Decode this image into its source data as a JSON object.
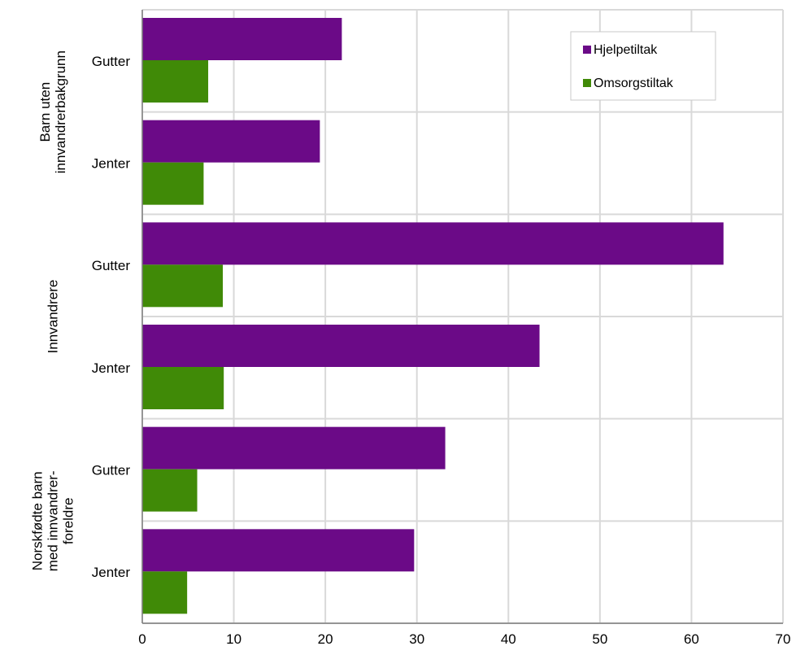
{
  "chart_data": {
    "type": "bar",
    "orientation": "horizontal",
    "groups": [
      {
        "label_lines": [
          "Barn uten",
          "innvandrerbakgrunn"
        ],
        "categories": [
          "Gutter",
          "Jenter"
        ]
      },
      {
        "label_lines": [
          "Innvandrere"
        ],
        "categories": [
          "Gutter",
          "Jenter"
        ]
      },
      {
        "label_lines": [
          "Norskfødte barn",
          "med innvandrer-",
          "foreldre"
        ],
        "categories": [
          "Gutter",
          "Jenter"
        ]
      }
    ],
    "categories": [
      "Gutter",
      "Jenter",
      "Gutter",
      "Jenter",
      "Gutter",
      "Jenter"
    ],
    "series": [
      {
        "name": "Hjelpetiltak",
        "color": "#6b0a87",
        "values": [
          21.8,
          19.4,
          63.5,
          43.4,
          33.1,
          29.7
        ]
      },
      {
        "name": "Omsorgstiltak",
        "color": "#408a07",
        "values": [
          7.2,
          6.7,
          8.8,
          8.9,
          6.0,
          4.9
        ]
      }
    ],
    "xlim": [
      0,
      70
    ],
    "xticks": [
      "0",
      "10",
      "20",
      "30",
      "40",
      "50",
      "60",
      "70"
    ],
    "grid": true,
    "legend_position": "top-right",
    "title": "",
    "xlabel": "",
    "ylabel": ""
  }
}
